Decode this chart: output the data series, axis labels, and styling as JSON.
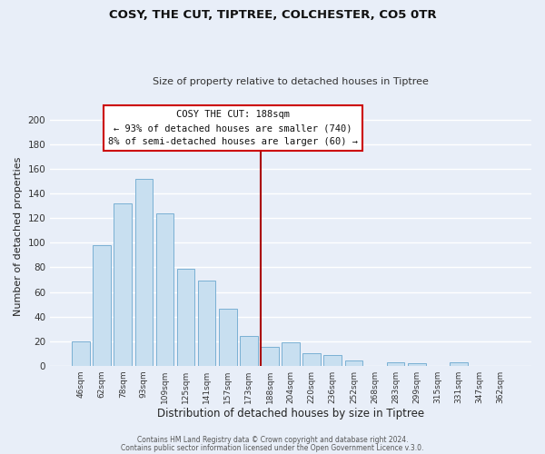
{
  "title": "COSY, THE CUT, TIPTREE, COLCHESTER, CO5 0TR",
  "subtitle": "Size of property relative to detached houses in Tiptree",
  "xlabel": "Distribution of detached houses by size in Tiptree",
  "ylabel": "Number of detached properties",
  "bar_labels": [
    "46sqm",
    "62sqm",
    "78sqm",
    "93sqm",
    "109sqm",
    "125sqm",
    "141sqm",
    "157sqm",
    "173sqm",
    "188sqm",
    "204sqm",
    "220sqm",
    "236sqm",
    "252sqm",
    "268sqm",
    "283sqm",
    "299sqm",
    "315sqm",
    "331sqm",
    "347sqm",
    "362sqm"
  ],
  "bar_values": [
    20,
    98,
    132,
    152,
    124,
    79,
    69,
    46,
    24,
    15,
    19,
    10,
    9,
    4,
    0,
    3,
    2,
    0,
    3,
    0,
    0
  ],
  "bar_color": "#c8dff0",
  "bar_edge_color": "#7ab0d4",
  "vline_color": "#aa0000",
  "ylim": [
    0,
    210
  ],
  "yticks": [
    0,
    20,
    40,
    60,
    80,
    100,
    120,
    140,
    160,
    180,
    200
  ],
  "annotation_title": "COSY THE CUT: 188sqm",
  "annotation_line1": "← 93% of detached houses are smaller (740)",
  "annotation_line2": "8% of semi-detached houses are larger (60) →",
  "footer_line1": "Contains HM Land Registry data © Crown copyright and database right 2024.",
  "footer_line2": "Contains public sector information licensed under the Open Government Licence v.3.0.",
  "background_color": "#e8eef8",
  "grid_color": "#c8d4e8"
}
